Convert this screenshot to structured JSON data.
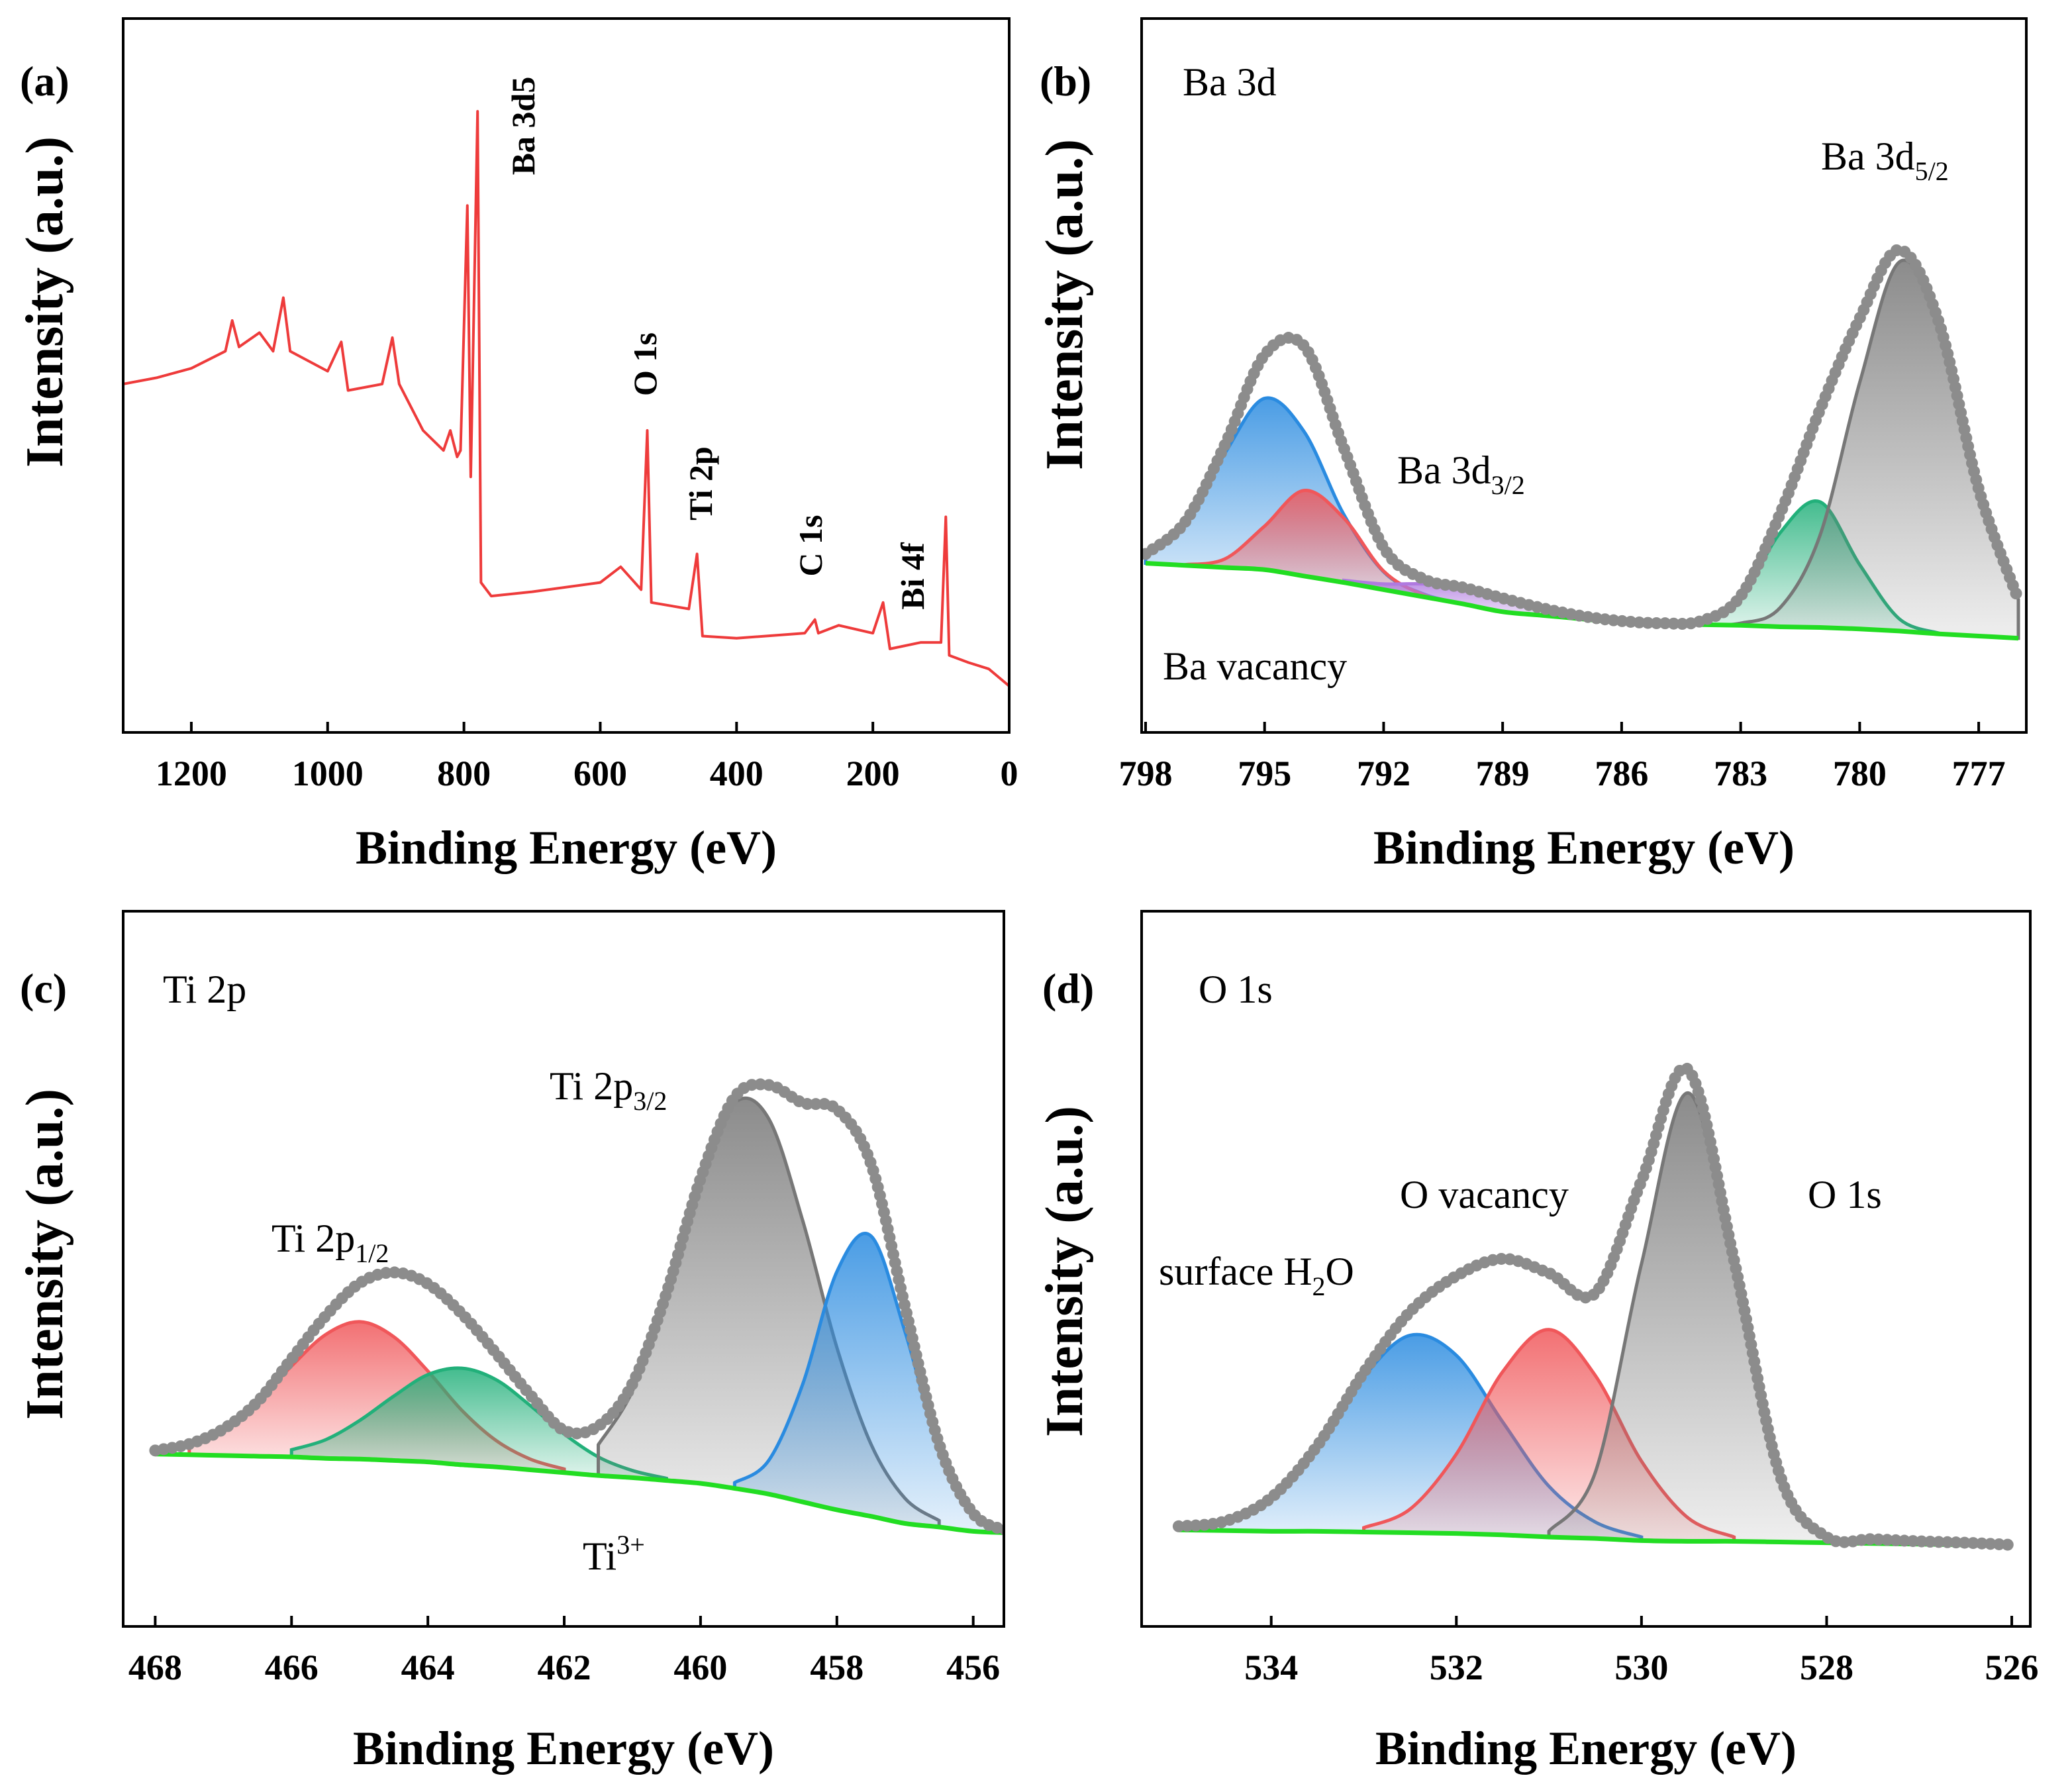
{
  "chart_data": [
    {
      "type": "line",
      "label": "(a)",
      "xlabel": "Binding Energy (eV)",
      "ylabel": "Intensity (a.u.)",
      "xlim": [
        1300,
        0
      ],
      "ylim": [
        0,
        100
      ],
      "xticks": [
        1200,
        1000,
        800,
        600,
        400,
        200,
        0
      ],
      "annotations": [
        {
          "text": "Ba 3d5"
        },
        {
          "text": "O 1s"
        },
        {
          "text": "Ti 2p"
        },
        {
          "text": "C 1s"
        },
        {
          "text": "Bi 4f"
        }
      ],
      "x": [
        1300,
        1250,
        1200,
        1150,
        1140,
        1130,
        1100,
        1080,
        1065,
        1055,
        1000,
        980,
        970,
        920,
        905,
        895,
        860,
        830,
        820,
        810,
        805,
        795,
        790,
        780,
        775,
        760,
        700,
        600,
        570,
        540,
        531,
        525,
        470,
        458,
        450,
        400,
        300,
        285,
        280,
        250,
        200,
        185,
        175,
        130,
        100,
        93,
        88,
        60,
        30,
        0
      ],
      "series": [
        {
          "color": "#ee3b3b",
          "style": "line",
          "values": [
            48.8,
            49.7,
            51.0,
            53.4,
            57.7,
            54.0,
            56.0,
            53.4,
            60.9,
            53.4,
            50.6,
            54.7,
            47.9,
            48.8,
            55.3,
            48.8,
            42.3,
            39.5,
            42.3,
            38.6,
            39.5,
            73.8,
            35.8,
            87.0,
            21.0,
            19.1,
            19.7,
            21.0,
            23.2,
            20.0,
            42.3,
            18.2,
            17.3,
            25.0,
            13.5,
            13.2,
            13.9,
            15.8,
            13.9,
            15.0,
            13.9,
            18.2,
            11.7,
            12.6,
            12.6,
            30.2,
            10.8,
            9.8,
            8.9,
            6.5
          ]
        }
      ]
    },
    {
      "type": "area",
      "label": "(b)",
      "xlabel": "Binding Energy (eV)",
      "ylabel": "Intensity (a.u.)",
      "xlim": [
        798.1,
        775.8
      ],
      "ylim": [
        0,
        100
      ],
      "xticks": [
        798,
        795,
        792,
        789,
        786,
        783,
        780,
        777
      ],
      "annotations": [
        {
          "text": "Ba 3d"
        },
        {
          "text": "Ba 3d",
          "sub": "3/2"
        },
        {
          "text": "Ba 3d",
          "sub": "5/2"
        },
        {
          "text": "Ba vacancy"
        }
      ],
      "x": [
        798,
        797,
        796,
        795,
        794,
        793,
        792,
        791,
        790,
        789,
        788,
        787,
        786,
        785,
        784,
        783,
        782,
        781,
        780,
        779,
        778,
        777,
        776
      ],
      "series": [
        {
          "color": "#2a8be0",
          "style": "fill",
          "values": [
            25.0,
            29.4,
            39.1,
            46.8,
            42.1,
            30.5,
            22.5,
            19.4,
            18.0,
            null,
            null,
            null,
            null,
            null,
            null,
            null,
            null,
            null,
            null,
            null,
            null,
            null,
            null
          ]
        },
        {
          "color": "#f0575a",
          "style": "fill",
          "values": [
            null,
            23.5,
            24.3,
            28.9,
            33.9,
            30.0,
            22.6,
            19.3,
            18.0,
            null,
            null,
            null,
            null,
            null,
            null,
            null,
            null,
            null,
            null,
            null,
            null,
            null,
            null
          ]
        },
        {
          "color": "#b07ae0",
          "style": "fill",
          "values": [
            null,
            null,
            null,
            null,
            null,
            21.3,
            20.8,
            20.8,
            20.3,
            18.8,
            17.4,
            16.3,
            15.6,
            15.3,
            null,
            null,
            null,
            null,
            null,
            null,
            null,
            null,
            null
          ]
        },
        {
          "color": "#22b07a",
          "style": "fill",
          "values": [
            null,
            null,
            null,
            null,
            null,
            null,
            null,
            null,
            null,
            null,
            null,
            null,
            null,
            15.3,
            15.5,
            18.8,
            28.0,
            32.3,
            23.5,
            15.9,
            13.9,
            null,
            null
          ]
        },
        {
          "color": "#777777",
          "style": "fill",
          "values": [
            null,
            null,
            null,
            null,
            null,
            null,
            null,
            null,
            null,
            null,
            null,
            null,
            null,
            null,
            15.1,
            15.3,
            17.5,
            27.6,
            49.0,
            65.9,
            57.3,
            34.1,
            18.6
          ]
        },
        {
          "color": "#22dd22",
          "style": "line",
          "values": [
            23.7,
            23.4,
            23.1,
            22.8,
            21.9,
            21.0,
            20.0,
            19.0,
            18.0,
            16.9,
            16.4,
            15.9,
            15.4,
            15.3,
            15.1,
            15.0,
            14.8,
            14.7,
            14.5,
            14.2,
            13.8,
            13.5,
            13.2
          ]
        },
        {
          "color": "#8c8c8c",
          "style": "markers",
          "values": [
            25.0,
            29.5,
            40.3,
            52.9,
            54.1,
            39.8,
            25.9,
            21.5,
            20.3,
            18.8,
            17.4,
            16.3,
            15.6,
            15.3,
            15.6,
            19.1,
            30.7,
            45.2,
            58.0,
            67.6,
            57.4,
            34.1,
            18.6
          ]
        }
      ]
    },
    {
      "type": "area",
      "label": "(c)",
      "xlabel": "Binding Energy (eV)",
      "ylabel": "Intensity (a.u.)",
      "xlim": [
        468.47,
        455.55
      ],
      "ylim": [
        0,
        100
      ],
      "xticks": [
        468,
        466,
        464,
        462,
        460,
        458,
        456
      ],
      "annotations": [
        {
          "text": "Ti 2p"
        },
        {
          "text": "Ti 2p",
          "sub": "1/2"
        },
        {
          "text": "Ti 2p",
          "sub": "3/2"
        },
        {
          "text": "Ti",
          "sup": "3+"
        }
      ],
      "x": [
        468,
        467.5,
        467,
        466.5,
        466,
        465.5,
        465,
        464.5,
        464,
        463.5,
        463,
        462.5,
        462,
        461.5,
        461,
        460.5,
        460,
        459.5,
        459,
        458.5,
        458,
        457.5,
        457,
        456.5,
        456,
        455.5
      ],
      "series": [
        {
          "color": "#f0575a",
          "style": "fill",
          "values": [
            null,
            25.5,
            27.6,
            31.4,
            36.4,
            40.8,
            42.6,
            40.5,
            35.7,
            30.2,
            26.0,
            23.4,
            22.0,
            null,
            null,
            null,
            null,
            null,
            null,
            null,
            null,
            null,
            null,
            null,
            null,
            null
          ]
        },
        {
          "color": "#22b07a",
          "style": "fill",
          "values": [
            null,
            null,
            null,
            null,
            24.7,
            26.1,
            28.8,
            32.2,
            35.2,
            36.1,
            34.5,
            30.9,
            26.9,
            23.7,
            21.8,
            20.7,
            null,
            null,
            null,
            null,
            null,
            null,
            null,
            null,
            null,
            null
          ]
        },
        {
          "color": "#777777",
          "style": "fill",
          "values": [
            null,
            null,
            null,
            null,
            null,
            null,
            null,
            null,
            null,
            null,
            null,
            null,
            null,
            25.4,
            32.9,
            46.3,
            62.6,
            73.2,
            71.0,
            56.7,
            39.0,
            25.5,
            17.9,
            14.8,
            null,
            null
          ]
        },
        {
          "color": "#2a8be0",
          "style": "fill",
          "values": [
            null,
            null,
            null,
            null,
            null,
            null,
            null,
            null,
            null,
            null,
            null,
            null,
            null,
            null,
            null,
            null,
            null,
            20.1,
            23.2,
            33.9,
            49.6,
            54.6,
            41.2,
            24.6,
            15.8,
            13.4
          ]
        },
        {
          "color": "#22dd22",
          "style": "line",
          "values": [
            24.1,
            24.0,
            23.9,
            23.8,
            23.7,
            23.5,
            23.4,
            23.2,
            23.0,
            22.6,
            22.3,
            21.9,
            21.5,
            21.1,
            20.8,
            20.4,
            20.0,
            19.3,
            18.5,
            17.4,
            16.3,
            15.4,
            14.4,
            13.9,
            13.3,
            13.1
          ]
        },
        {
          "color": "#8c8c8c",
          "style": "markers",
          "values": [
            24.6,
            25.5,
            27.6,
            31.4,
            37.4,
            43.4,
            48.0,
            49.5,
            47.9,
            43.7,
            38.2,
            32.4,
            27.4,
            28.0,
            33.9,
            46.6,
            62.6,
            74.0,
            75.7,
            73.2,
            72.3,
            64.7,
            44.7,
            25.5,
            15.8,
            13.4
          ]
        }
      ]
    },
    {
      "type": "area",
      "label": "(d)",
      "xlabel": "Binding Energy (eV)",
      "ylabel": "Intensity (a.u.)",
      "xlim": [
        535.4,
        525.8
      ],
      "ylim": [
        0,
        100
      ],
      "xticks": [
        534,
        532,
        530,
        528,
        526
      ],
      "annotations": [
        {
          "text": "O 1s"
        },
        {
          "text": "O vacancy"
        },
        {
          "text": "O 1s"
        },
        {
          "text": "surface H",
          "sub": "2",
          "tail": "O"
        }
      ],
      "x": [
        535,
        534.5,
        534,
        533.5,
        533,
        532.5,
        532,
        531.5,
        531,
        530.5,
        530,
        529.5,
        529,
        528.5,
        528,
        527.5,
        527,
        526.5,
        526
      ],
      "series": [
        {
          "color": "#2a8be0",
          "style": "fill",
          "values": [
            13.5,
            14.7,
            18.0,
            25.3,
            34.9,
            40.7,
            37.9,
            28.6,
            19.6,
            14.6,
            12.5,
            null,
            null,
            null,
            null,
            null,
            null,
            null,
            null
          ]
        },
        {
          "color": "#f0575a",
          "style": "fill",
          "values": [
            null,
            null,
            null,
            null,
            13.8,
            16.4,
            24.1,
            35.6,
            41.5,
            35.1,
            23.1,
            15.2,
            12.5,
            null,
            null,
            null,
            null,
            null,
            null
          ]
        },
        {
          "color": "#777777",
          "style": "fill",
          "values": [
            null,
            null,
            null,
            null,
            null,
            null,
            null,
            null,
            13.3,
            21.5,
            50.7,
            74.6,
            50.6,
            21.0,
            12.5,
            null,
            null,
            null,
            null
          ]
        },
        {
          "color": "#22dd22",
          "style": "line",
          "values": [
            13.5,
            13.4,
            13.3,
            13.3,
            13.2,
            13.1,
            13.0,
            12.8,
            12.5,
            12.3,
            12.0,
            11.9,
            11.9,
            11.8,
            11.7,
            11.6,
            11.5,
            11.4,
            11.3
          ]
        },
        {
          "color": "#8c8c8c",
          "style": "markers",
          "values": [
            14.0,
            14.7,
            18.0,
            25.3,
            35.5,
            44.0,
            49.0,
            51.4,
            49.4,
            46.6,
            62.3,
            77.9,
            51.2,
            21.0,
            12.5,
            12.2,
            11.9,
            11.7,
            11.4
          ]
        }
      ]
    }
  ]
}
